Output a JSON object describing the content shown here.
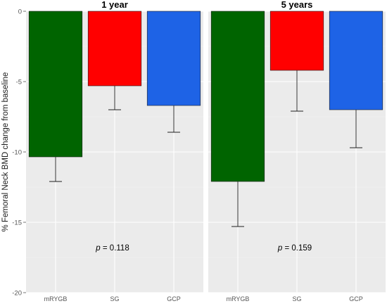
{
  "chart_data": {
    "type": "bar",
    "ylabel": "% Femoral Neck BMD change from baseline",
    "ylim": [
      -20,
      0
    ],
    "yticks": [
      0,
      -5,
      -10,
      -15,
      -20
    ],
    "categories": [
      "mRYGB",
      "SG",
      "GCP"
    ],
    "colors": {
      "mRYGB": "#006400",
      "SG": "#ff0000",
      "GCP": "#1e63e6"
    },
    "grid": true,
    "panels": [
      {
        "title": "1 year",
        "annotation": {
          "italic": "p",
          "text": " = 0.118"
        },
        "values": [
          -10.35,
          -5.3,
          -6.7
        ],
        "error_low": [
          -12.1,
          -7.0,
          -8.6
        ]
      },
      {
        "title": "5 years",
        "annotation": {
          "italic": "p",
          "text": " = 0.159"
        },
        "values": [
          -12.1,
          -4.2,
          -7.0
        ],
        "error_low": [
          -15.3,
          -7.1,
          -9.7
        ]
      }
    ]
  }
}
